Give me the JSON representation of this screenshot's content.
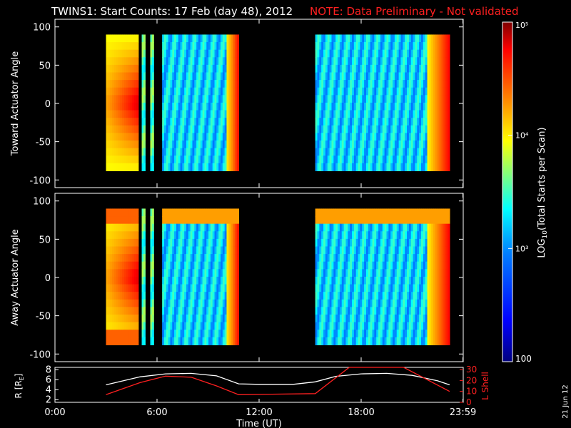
{
  "figure": {
    "title": "TWINS1: Start Counts: 17 Feb (day  48), 2012",
    "note": "NOTE: Data Preliminary - Not validated",
    "date_stamp": "21 Jun 12"
  },
  "colorbar": {
    "label": "LOG10(Total Starts per Scan)",
    "label_prefix": "LOG",
    "label_sub": "10",
    "label_rest": "(Total Starts per Scan)",
    "tick_labels": [
      "100",
      "10³",
      "10⁴",
      "10⁵"
    ],
    "range": [
      100,
      100000
    ],
    "scale": "log",
    "colors": [
      "#00007f",
      "#0000ff",
      "#007fff",
      "#00ffff",
      "#7fff7f",
      "#ffff00",
      "#ff7f00",
      "#ff0000",
      "#7f0000"
    ]
  },
  "chart_data": [
    {
      "type": "heatmap",
      "name": "toward",
      "ylabel": "Toward Actuator Angle",
      "ylim": [
        -110,
        110
      ],
      "yticks": [
        100,
        50,
        0,
        -50,
        -100
      ],
      "xlim": [
        0,
        24
      ],
      "data_range_y": [
        -88,
        90
      ],
      "segments_hours": [
        [
          3.0,
          4.9
        ],
        [
          5.1,
          5.3
        ],
        [
          5.6,
          5.8
        ],
        [
          6.3,
          10.8
        ],
        [
          15.3,
          23.2
        ]
      ],
      "value_range": [
        300,
        100000
      ]
    },
    {
      "type": "heatmap",
      "name": "away",
      "ylabel": "Away Actuator Angle",
      "ylim": [
        -110,
        110
      ],
      "yticks": [
        100,
        50,
        0,
        -50,
        -100
      ],
      "xlim": [
        0,
        24
      ],
      "data_range_y": [
        -88,
        90
      ],
      "segments_hours": [
        [
          3.0,
          4.9
        ],
        [
          5.1,
          5.3
        ],
        [
          5.6,
          5.8
        ],
        [
          6.3,
          10.8
        ],
        [
          15.3,
          23.2
        ]
      ],
      "value_range": [
        300,
        100000
      ]
    },
    {
      "type": "line",
      "name": "ephemeris",
      "xlabel": "Time (UT)",
      "x_tick_labels": [
        "0:00",
        "6:00",
        "12:00",
        "18:00",
        "23:59"
      ],
      "x_ticks_hours": [
        0,
        6,
        12,
        18,
        23.98
      ],
      "left_axis": {
        "label": "R [RE]",
        "label_main": "R [R",
        "label_sub": "E",
        "label_end": "]",
        "ylim": [
          1.5,
          8.5
        ],
        "ticks": [
          2,
          4,
          6,
          8
        ]
      },
      "right_axis": {
        "label": "L Shell",
        "ylim": [
          0,
          32
        ],
        "ticks": [
          0,
          10,
          20,
          30
        ],
        "color": "#ff2020"
      },
      "series": [
        {
          "name": "R [RE]",
          "axis": "left",
          "color": "#ffffff",
          "x": [
            3.0,
            5.0,
            6.5,
            8.0,
            9.5,
            10.8,
            12.0,
            14.0,
            15.3,
            16.5,
            18.0,
            19.5,
            21.0,
            22.5,
            23.2
          ],
          "y": [
            5.0,
            6.6,
            7.2,
            7.3,
            6.8,
            5.2,
            5.1,
            5.1,
            5.6,
            6.7,
            7.2,
            7.3,
            6.9,
            5.8,
            5.0
          ]
        },
        {
          "name": "L Shell",
          "axis": "right",
          "color": "#ff2020",
          "x": [
            3.0,
            5.0,
            6.5,
            8.0,
            9.5,
            10.8,
            15.3,
            17.3,
            20.5,
            23.2
          ],
          "y": [
            7,
            18,
            24,
            23,
            15,
            7,
            8,
            32,
            32,
            10
          ]
        }
      ]
    }
  ]
}
